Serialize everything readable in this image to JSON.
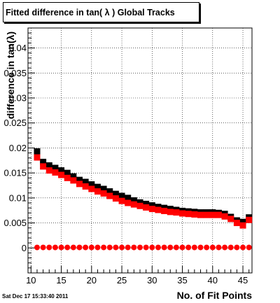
{
  "title": "Fitted difference in tan( λ )  Global Tracks",
  "timestamp": "Sat Dec 17 15:33:40 2011",
  "chart_data": {
    "type": "scatter",
    "title": "Fitted difference in tan( λ )  Global Tracks",
    "xlabel": "No. of Fit Points",
    "ylabel": "difference in tan(λ)",
    "xlim": [
      9.5,
      46.5
    ],
    "ylim": [
      -0.005,
      0.044
    ],
    "x_ticks": [
      10,
      15,
      20,
      25,
      30,
      35,
      40,
      45
    ],
    "x_tick_labels": [
      "10",
      "15",
      "20",
      "25",
      "30",
      "35",
      "40",
      "45"
    ],
    "y_ticks": [
      0,
      0.005,
      0.01,
      0.015,
      0.02,
      0.025,
      0.03,
      0.035,
      0.04
    ],
    "y_tick_labels": [
      "0",
      "0.005",
      "0.01",
      "0.015",
      "0.02",
      "0.025",
      "0.03",
      "0.035",
      "0.04"
    ],
    "grid": true,
    "marker_colors": {
      "black": "#000000",
      "red": "#ff0000"
    },
    "series": [
      {
        "marker": "square",
        "color": "#000000",
        "x": [
          11,
          12,
          13,
          14,
          15,
          16,
          17,
          18,
          19,
          20,
          21,
          22,
          23,
          24,
          25,
          26,
          27,
          28,
          29,
          30,
          31,
          32,
          33,
          34,
          35,
          36,
          37,
          38,
          39,
          40,
          41,
          42,
          43,
          44,
          45,
          46
        ],
        "values": [
          0.0193,
          0.0172,
          0.0165,
          0.016,
          0.0155,
          0.015,
          0.0143,
          0.0136,
          0.0132,
          0.0127,
          0.0122,
          0.0118,
          0.0113,
          0.0108,
          0.0104,
          0.01,
          0.0095,
          0.0091,
          0.0088,
          0.0085,
          0.0082,
          0.008,
          0.0078,
          0.0076,
          0.0074,
          0.0073,
          0.0072,
          0.0071,
          0.0071,
          0.0071,
          0.007,
          0.0068,
          0.0062,
          0.0055,
          0.0052,
          0.0061
        ]
      },
      {
        "marker": "square",
        "color": "#ff0000",
        "x": [
          11,
          12,
          13,
          14,
          15,
          16,
          17,
          18,
          19,
          20,
          21,
          22,
          23,
          24,
          25,
          26,
          27,
          28,
          29,
          30,
          31,
          32,
          33,
          34,
          35,
          36,
          37,
          38,
          39,
          40,
          41,
          42,
          43,
          44,
          45,
          46
        ],
        "values": [
          0.0181,
          0.0163,
          0.0155,
          0.0151,
          0.0146,
          0.014,
          0.0135,
          0.0128,
          0.0123,
          0.0118,
          0.0113,
          0.0109,
          0.0104,
          0.0099,
          0.0094,
          0.009,
          0.0087,
          0.0084,
          0.0081,
          0.0078,
          0.0076,
          0.0074,
          0.0072,
          0.0071,
          0.0069,
          0.0068,
          0.0067,
          0.0066,
          0.0066,
          0.0066,
          0.0066,
          0.0063,
          0.0058,
          0.005,
          0.0045,
          0.0056
        ]
      },
      {
        "marker": "circle",
        "color": "#ff0000",
        "x": [
          11,
          12,
          13,
          14,
          15,
          16,
          17,
          18,
          19,
          20,
          21,
          22,
          23,
          24,
          25,
          26,
          27,
          28,
          29,
          30,
          31,
          32,
          33,
          34,
          35,
          36,
          37,
          38,
          39,
          40,
          41,
          42,
          43,
          44,
          45,
          46
        ],
        "values": [
          0.0001,
          0.0001,
          0.0001,
          0.0001,
          0.0001,
          0.0001,
          0.0001,
          0.0001,
          0.0001,
          0.0001,
          0.0001,
          0.0001,
          0.0001,
          0.0001,
          0.0001,
          0.0001,
          0.0001,
          0.0001,
          0.0001,
          0.0001,
          0.0001,
          0.0001,
          0.0001,
          0.0001,
          0.0001,
          0.0001,
          0.0001,
          0.0001,
          0.0001,
          0.0001,
          0.0001,
          0.0001,
          0.0001,
          0.0001,
          0.0001,
          0.0001
        ]
      }
    ]
  }
}
